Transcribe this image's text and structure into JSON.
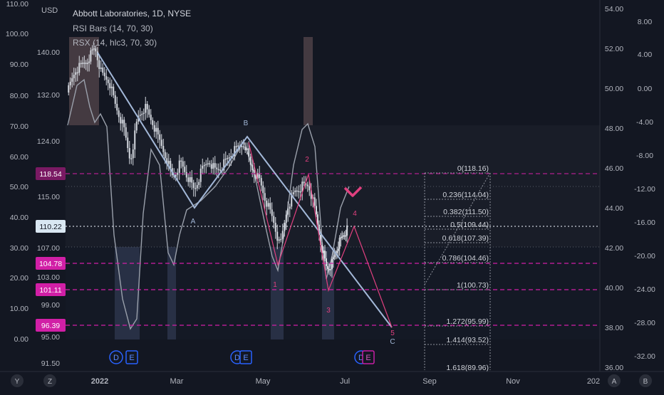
{
  "legend": {
    "title": "Abbott Laboratories, 1D, NYSE",
    "line2": "RSI Bars (14, 70, 30)",
    "line3": "RSX (14, hlc3, 70, 30)",
    "currency": "USD"
  },
  "colors": {
    "background": "#131722",
    "wave_main": "#a3b8d8",
    "wave_minor": "#e0407f",
    "fib": "#d0d3da",
    "level_dash": "#d11fa6",
    "price_badge": "#d11fa6",
    "current_price_badge": "#d9e7f2",
    "candle": "#d5d9e0"
  },
  "chart_data": {
    "type": "line",
    "title": "Abbott Laboratories, 1D, NYSE",
    "currency": "USD",
    "x_ticks": [
      "2022",
      "Mar",
      "May",
      "Jul",
      "Sep",
      "Nov",
      "202"
    ],
    "left_axis_outer": [
      "110.00",
      "100.00",
      "90.00",
      "80.00",
      "70.00",
      "60.00",
      "50.00",
      "40.00",
      "30.00",
      "20.00",
      "10.00",
      "0.00"
    ],
    "left_axis_price": [
      "140.00",
      "132.00",
      "124.00",
      "115.00",
      "107.00",
      "103.00",
      "99.00",
      "95.00",
      "91.50"
    ],
    "right_axis_1": [
      "54.00",
      "52.00",
      "50.00",
      "48.00",
      "46.00",
      "44.00",
      "42.00",
      "40.00",
      "38.00",
      "36.00"
    ],
    "right_axis_2": [
      "8.00",
      "4.00",
      "0.00",
      "-4.00",
      "-8.00",
      "-12.00",
      "-16.00",
      "-20.00",
      "-24.00",
      "-28.00",
      "-32.00"
    ],
    "price_badges": [
      {
        "label": "118.54",
        "value": 118.54,
        "style": "dark-magenta"
      },
      {
        "label": "110.22",
        "value": 110.22,
        "style": "current"
      },
      {
        "label": "104.78",
        "value": 104.78,
        "style": "magenta"
      },
      {
        "label": "101.11",
        "value": 101.11,
        "style": "magenta"
      },
      {
        "label": "96.39",
        "value": 96.39,
        "style": "magenta"
      }
    ],
    "fibonacci": [
      {
        "label": "0(118.16)",
        "ratio": 0,
        "price": 118.16
      },
      {
        "label": "0.236(114.04)",
        "ratio": 0.236,
        "price": 114.04
      },
      {
        "label": "0.382(111.50)",
        "ratio": 0.382,
        "price": 111.5
      },
      {
        "label": "0.5(109.44)",
        "ratio": 0.5,
        "price": 109.44
      },
      {
        "label": "0.618(107.39)",
        "ratio": 0.618,
        "price": 107.39
      },
      {
        "label": "0.786(104.46)",
        "ratio": 0.786,
        "price": 104.46
      },
      {
        "label": "1(100.73)",
        "ratio": 1,
        "price": 100.73
      },
      {
        "label": "1.272(95.99)",
        "ratio": 1.272,
        "price": 95.99
      },
      {
        "label": "1.414(93.52)",
        "ratio": 1.414,
        "price": 93.52
      },
      {
        "label": "1.618(89.96)",
        "ratio": 1.618,
        "price": 89.96
      }
    ],
    "main_wave": {
      "points": [
        [
          137,
          74
        ],
        [
          273,
          292
        ],
        [
          347,
          192
        ],
        [
          550,
          460
        ]
      ],
      "labels": [
        {
          "text": "A",
          "x": 271,
          "y": 314
        },
        {
          "text": "B",
          "x": 345,
          "y": 176
        },
        {
          "text": "C",
          "x": 551,
          "y": 483
        }
      ]
    },
    "minor_wave": {
      "points": [
        [
          349,
          200
        ],
        [
          390,
          372
        ],
        [
          433,
          245
        ],
        [
          461,
          408
        ],
        [
          497,
          318
        ],
        [
          550,
          460
        ]
      ],
      "labels": [
        {
          "text": "1",
          "x": 386,
          "y": 403
        },
        {
          "text": "2",
          "x": 431,
          "y": 227
        },
        {
          "text": "3",
          "x": 461,
          "y": 439
        },
        {
          "text": "4",
          "x": 498,
          "y": 303
        },
        {
          "text": "5",
          "x": 551,
          "y": 471
        }
      ]
    },
    "event_markers": [
      {
        "kind": "D",
        "x": 163
      },
      {
        "kind": "E",
        "x": 185
      },
      {
        "kind": "D",
        "x": 333
      },
      {
        "kind": "E",
        "x": 345
      },
      {
        "kind": "D",
        "x": 507
      },
      {
        "kind": "E",
        "x": 517
      }
    ]
  },
  "scale_buttons": {
    "left": [
      "Y",
      "Z"
    ],
    "right": [
      "A",
      "B"
    ]
  }
}
